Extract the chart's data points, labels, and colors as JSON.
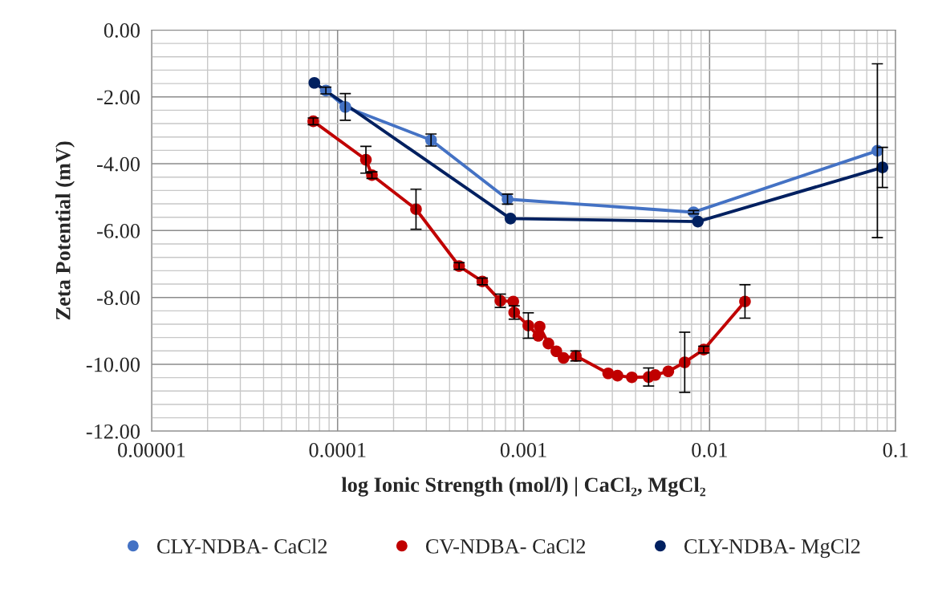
{
  "chart_data": {
    "type": "line",
    "xlabel": "log Ionic Strength (mol/l) | CaCl₂, MgCl₂",
    "ylabel": "Zeta Potential (mV)",
    "log": "x",
    "grid": true,
    "legend": "bottom",
    "marker": "circle",
    "line_style": "solid",
    "xlim": [
      1e-05,
      0.1
    ],
    "xticks": [
      {
        "value": 1e-05,
        "label": "0.00001"
      },
      {
        "value": 0.0001,
        "label": "0.0001"
      },
      {
        "value": 0.001,
        "label": "0.001"
      },
      {
        "value": 0.01,
        "label": "0.01"
      },
      {
        "value": 0.1,
        "label": "0.1"
      }
    ],
    "ylim": [
      -12,
      0
    ],
    "yticks": [
      {
        "value": 0,
        "label": "0.00"
      },
      {
        "value": -2,
        "label": "-2.00"
      },
      {
        "value": -4,
        "label": "-4.00"
      },
      {
        "value": -6,
        "label": "-6.00"
      },
      {
        "value": -8,
        "label": "-8.00"
      },
      {
        "value": -10,
        "label": "-10.00"
      },
      {
        "value": -12,
        "label": "-12.00"
      }
    ],
    "series": [
      {
        "name": "CLY-NDBA- CaCl2",
        "color": "#4472c4",
        "x": [
          8.65e-05,
          0.00011,
          0.000318,
          0.00082,
          0.0082,
          0.0798
        ],
        "values": [
          -1.81,
          -2.3,
          -3.29,
          -5.06,
          -5.45,
          -3.61
        ],
        "errors": [
          0.1,
          0.4,
          0.18,
          0.15,
          0.05,
          2.6
        ]
      },
      {
        "name": "CV-NDBA- CaCl2",
        "color": "#c00000",
        "x": [
          7.4e-05,
          0.000142,
          0.000153,
          0.000264,
          0.00045,
          0.0006,
          0.00075,
          0.00088,
          0.00089,
          0.00106,
          0.0012,
          0.00122,
          0.00136,
          0.0015,
          0.00164,
          0.00191,
          0.00285,
          0.0032,
          0.00382,
          0.0047,
          0.0051,
          0.006,
          0.00735,
          0.0093,
          0.0155
        ],
        "values": [
          -2.73,
          -3.88,
          -4.34,
          -5.36,
          -7.06,
          -7.52,
          -8.1,
          -8.12,
          -8.45,
          -8.84,
          -9.15,
          -8.87,
          -9.38,
          -9.61,
          -9.81,
          -9.75,
          -10.27,
          -10.34,
          -10.39,
          -10.38,
          -10.32,
          -10.21,
          -9.94,
          -9.56,
          -8.12
        ],
        "errors": [
          0.1,
          0.4,
          0.1,
          0.6,
          0.1,
          0.1,
          0.2,
          null,
          0.2,
          0.38,
          null,
          null,
          null,
          null,
          null,
          0.15,
          null,
          null,
          null,
          0.27,
          null,
          null,
          0.9,
          0.1,
          0.5
        ]
      },
      {
        "name": "CLY-NDBA- MgCl2",
        "color": "#002060",
        "x": [
          7.5e-05,
          0.00085,
          0.00865,
          0.085
        ],
        "values": [
          -1.58,
          -5.64,
          -5.73,
          -4.11
        ],
        "errors": [
          null,
          null,
          null,
          0.6
        ]
      }
    ]
  }
}
